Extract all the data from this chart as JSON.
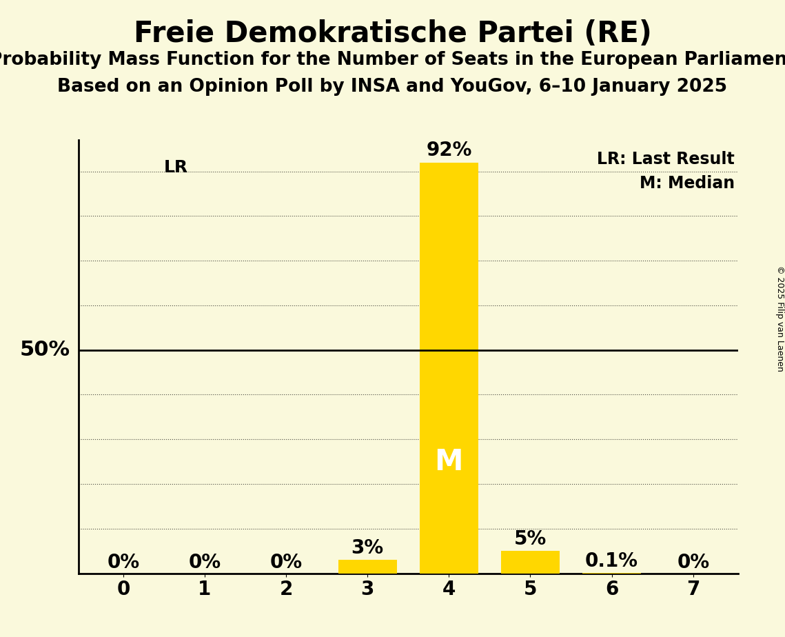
{
  "title": "Freie Demokratische Partei (RE)",
  "subtitle1": "Probability Mass Function for the Number of Seats in the European Parliament",
  "subtitle2": "Based on an Opinion Poll by INSA and YouGov, 6–10 January 2025",
  "copyright": "© 2025 Filip van Laenen",
  "seats": [
    0,
    1,
    2,
    3,
    4,
    5,
    6,
    7
  ],
  "probabilities": [
    0.0,
    0.0,
    0.0,
    0.03,
    0.92,
    0.05,
    0.001,
    0.0
  ],
  "bar_labels": [
    "0%",
    "0%",
    "0%",
    "3%",
    "92%",
    "5%",
    "0.1%",
    "0%"
  ],
  "bar_color": "#FFD700",
  "median_seat": 4,
  "lr_seat": 2,
  "background_color": "#FAF9DC",
  "line_color": "#000000",
  "legend_lr": "LR: Last Result",
  "legend_m": "M: Median",
  "ylabel_50": "50%",
  "lr_label": "LR",
  "m_label": "M",
  "ylim_max": 0.97,
  "title_fontsize": 30,
  "subtitle_fontsize": 19,
  "tick_fontsize": 20,
  "bar_label_fontsize": 20,
  "legend_fontsize": 17,
  "fifty_label_fontsize": 22,
  "lr_label_fontsize": 18,
  "m_inside_fontsize": 30,
  "copyright_fontsize": 9,
  "bar_width": 0.72
}
